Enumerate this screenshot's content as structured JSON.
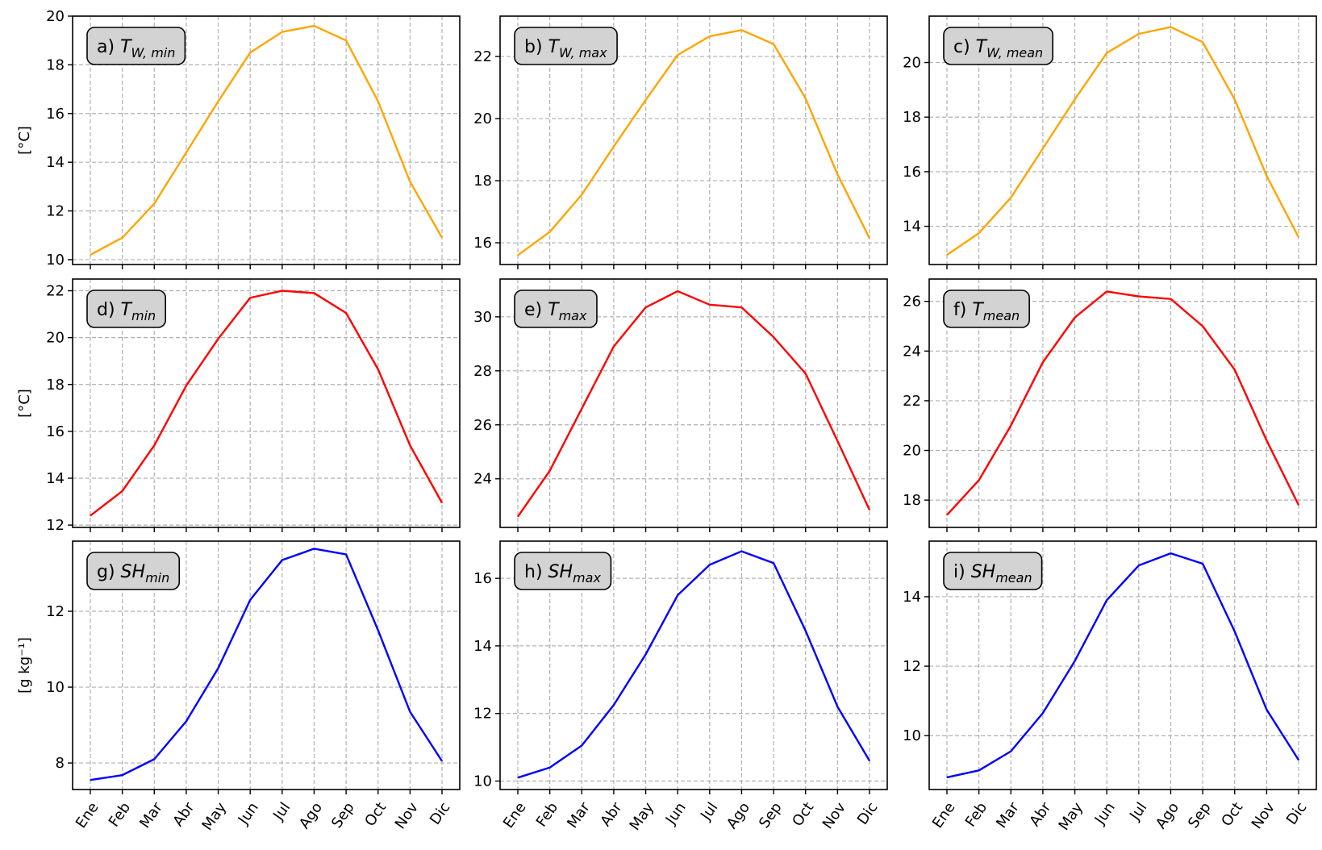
{
  "chart_data": [
    {
      "id": "a",
      "type": "line",
      "label_prefix": "a) ",
      "sym_base": "T",
      "sym_sub": "W, min",
      "ylabel": "[°C]",
      "ylim": [
        9.8,
        20.0
      ],
      "yticks": [
        10,
        12,
        14,
        16,
        18,
        20
      ],
      "grid": true,
      "color": "#FFA500",
      "categories": [
        "Ene",
        "Feb",
        "Mar",
        "Abr",
        "May",
        "Jun",
        "Jul",
        "Ago",
        "Sep",
        "Oct",
        "Nov",
        "Dic"
      ],
      "series": [
        {
          "values": [
            10.2,
            10.9,
            12.3,
            14.4,
            16.5,
            18.5,
            19.35,
            19.6,
            19.0,
            16.5,
            13.2,
            10.9
          ]
        }
      ]
    },
    {
      "id": "b",
      "type": "line",
      "label_prefix": "b) ",
      "sym_base": "T",
      "sym_sub": "W, max",
      "ylabel": "",
      "ylim": [
        15.3,
        23.3
      ],
      "yticks": [
        16,
        18,
        20,
        22
      ],
      "grid": true,
      "color": "#FFA500",
      "categories": [
        "Ene",
        "Feb",
        "Mar",
        "Abr",
        "May",
        "Jun",
        "Jul",
        "Ago",
        "Sep",
        "Oct",
        "Nov",
        "Dic"
      ],
      "series": [
        {
          "values": [
            15.6,
            16.35,
            17.55,
            19.1,
            20.6,
            22.05,
            22.65,
            22.85,
            22.4,
            20.65,
            18.2,
            16.15
          ]
        }
      ]
    },
    {
      "id": "c",
      "type": "line",
      "label_prefix": "c) ",
      "sym_base": "T",
      "sym_sub": "W, mean",
      "ylabel": "",
      "ylim": [
        12.6,
        21.7
      ],
      "yticks": [
        14,
        16,
        18,
        20
      ],
      "grid": true,
      "color": "#FFA500",
      "categories": [
        "Ene",
        "Feb",
        "Mar",
        "Abr",
        "May",
        "Jun",
        "Jul",
        "Ago",
        "Sep",
        "Oct",
        "Nov",
        "Dic"
      ],
      "series": [
        {
          "values": [
            12.95,
            13.75,
            15.05,
            16.85,
            18.65,
            20.35,
            21.05,
            21.3,
            20.75,
            18.65,
            15.85,
            13.6
          ]
        }
      ]
    },
    {
      "id": "d",
      "type": "line",
      "label_prefix": "d) ",
      "sym_base": "T",
      "sym_sub": "min",
      "ylabel": "[°C]",
      "ylim": [
        11.9,
        22.5
      ],
      "yticks": [
        12,
        14,
        16,
        18,
        20,
        22
      ],
      "grid": true,
      "color": "#FF0000",
      "categories": [
        "Ene",
        "Feb",
        "Mar",
        "Abr",
        "May",
        "Jun",
        "Jul",
        "Ago",
        "Sep",
        "Oct",
        "Nov",
        "Dic"
      ],
      "series": [
        {
          "values": [
            12.4,
            13.45,
            15.4,
            17.95,
            19.95,
            21.7,
            22.0,
            21.9,
            21.05,
            18.65,
            15.4,
            12.95
          ]
        }
      ]
    },
    {
      "id": "e",
      "type": "line",
      "label_prefix": "e) ",
      "sym_base": "T",
      "sym_sub": "max",
      "ylabel": "",
      "ylim": [
        22.2,
        31.4
      ],
      "yticks": [
        24,
        26,
        28,
        30
      ],
      "grid": true,
      "color": "#FF0000",
      "categories": [
        "Ene",
        "Feb",
        "Mar",
        "Abr",
        "May",
        "Jun",
        "Jul",
        "Ago",
        "Sep",
        "Oct",
        "Nov",
        "Dic"
      ],
      "series": [
        {
          "values": [
            22.6,
            24.3,
            26.6,
            28.9,
            30.35,
            30.95,
            30.45,
            30.35,
            29.25,
            27.9,
            25.4,
            22.85
          ]
        }
      ]
    },
    {
      "id": "f",
      "type": "line",
      "label_prefix": "f) ",
      "sym_base": "T",
      "sym_sub": "mean",
      "ylabel": "",
      "ylim": [
        16.9,
        26.9
      ],
      "yticks": [
        18,
        20,
        22,
        24,
        26
      ],
      "grid": true,
      "color": "#FF0000",
      "categories": [
        "Ene",
        "Feb",
        "Mar",
        "Abr",
        "May",
        "Jun",
        "Jul",
        "Ago",
        "Sep",
        "Oct",
        "Nov",
        "Dic"
      ],
      "series": [
        {
          "values": [
            17.4,
            18.8,
            21.0,
            23.55,
            25.35,
            26.4,
            26.2,
            26.1,
            25.0,
            23.25,
            20.4,
            17.8
          ]
        }
      ]
    },
    {
      "id": "g",
      "type": "line",
      "label_prefix": "g) ",
      "sym_base": "SH",
      "sym_sub": "min",
      "ylabel": "[g kg⁻¹]",
      "ylim": [
        7.3,
        13.85
      ],
      "yticks": [
        8,
        10,
        12
      ],
      "grid": true,
      "color": "#0000FF",
      "categories": [
        "Ene",
        "Feb",
        "Mar",
        "Abr",
        "May",
        "Jun",
        "Jul",
        "Ago",
        "Sep",
        "Oct",
        "Nov",
        "Dic"
      ],
      "series": [
        {
          "values": [
            7.55,
            7.68,
            8.1,
            9.1,
            10.5,
            12.3,
            13.35,
            13.65,
            13.5,
            11.5,
            9.35,
            8.05
          ]
        }
      ]
    },
    {
      "id": "h",
      "type": "line",
      "label_prefix": "h) ",
      "sym_base": "SH",
      "sym_sub": "max",
      "ylabel": "",
      "ylim": [
        9.75,
        17.1
      ],
      "yticks": [
        10,
        12,
        14,
        16
      ],
      "grid": true,
      "color": "#0000FF",
      "categories": [
        "Ene",
        "Feb",
        "Mar",
        "Abr",
        "May",
        "Jun",
        "Jul",
        "Ago",
        "Sep",
        "Oct",
        "Nov",
        "Dic"
      ],
      "series": [
        {
          "values": [
            10.1,
            10.4,
            11.05,
            12.25,
            13.75,
            15.5,
            16.4,
            16.8,
            16.45,
            14.45,
            12.2,
            10.6
          ]
        }
      ]
    },
    {
      "id": "i",
      "type": "line",
      "label_prefix": "i) ",
      "sym_base": "SH",
      "sym_sub": "mean",
      "ylabel": "",
      "ylim": [
        8.45,
        15.6
      ],
      "yticks": [
        10,
        12,
        14
      ],
      "grid": true,
      "color": "#0000FF",
      "categories": [
        "Ene",
        "Feb",
        "Mar",
        "Abr",
        "May",
        "Jun",
        "Jul",
        "Ago",
        "Sep",
        "Oct",
        "Nov",
        "Dic"
      ],
      "series": [
        {
          "values": [
            8.8,
            9.0,
            9.55,
            10.65,
            12.15,
            13.9,
            14.9,
            15.25,
            14.95,
            13.0,
            10.75,
            9.3
          ]
        }
      ]
    }
  ]
}
